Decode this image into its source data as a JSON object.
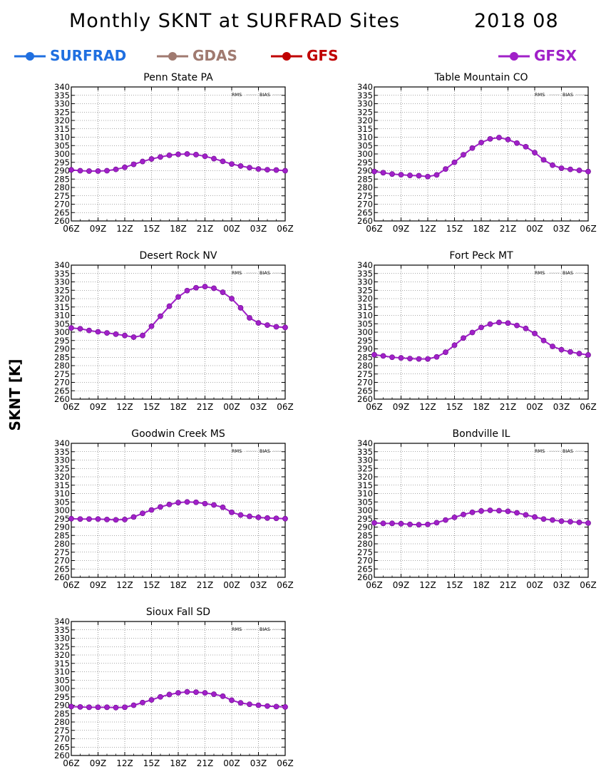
{
  "header": {
    "title": "Monthly SKNT at SURFRAD Sites",
    "date": "2018 08"
  },
  "legend": [
    {
      "name": "SURFRAD",
      "color": "#1f6fe0"
    },
    {
      "name": "GDAS",
      "color": "#a07a70"
    },
    {
      "name": "GFS",
      "color": "#c00000"
    },
    {
      "name": "GFSX",
      "color": "#a020c8"
    }
  ],
  "y_axis_label": "SKNT [K]",
  "panel_legend": [
    "RMS",
    "BIAS"
  ],
  "chart_data": [
    {
      "type": "line",
      "title": "Penn State PA",
      "x": [
        "06Z",
        "07Z",
        "08Z",
        "09Z",
        "10Z",
        "11Z",
        "12Z",
        "13Z",
        "14Z",
        "15Z",
        "16Z",
        "17Z",
        "18Z",
        "19Z",
        "20Z",
        "21Z",
        "22Z",
        "23Z",
        "00Z",
        "01Z",
        "02Z",
        "03Z",
        "04Z",
        "05Z",
        "06Z"
      ],
      "xticks": [
        "06Z",
        "09Z",
        "12Z",
        "15Z",
        "18Z",
        "21Z",
        "00Z",
        "03Z",
        "06Z"
      ],
      "ylim": [
        260,
        340
      ],
      "yticks": [
        260,
        265,
        270,
        275,
        280,
        285,
        290,
        295,
        300,
        305,
        310,
        315,
        320,
        325,
        330,
        335,
        340
      ],
      "grid": true,
      "series": [
        {
          "name": "GFSX",
          "color": "#a020c8",
          "values": [
            290.5,
            290,
            289.8,
            289.8,
            290,
            290.8,
            292,
            293.8,
            295.5,
            297,
            298.2,
            299.2,
            299.8,
            300,
            299.6,
            298.6,
            297.2,
            295.6,
            294,
            292.8,
            291.8,
            291,
            290.6,
            290.4,
            290
          ]
        }
      ]
    },
    {
      "type": "line",
      "title": "Table Mountain CO",
      "x": [
        "06Z",
        "07Z",
        "08Z",
        "09Z",
        "10Z",
        "11Z",
        "12Z",
        "13Z",
        "14Z",
        "15Z",
        "16Z",
        "17Z",
        "18Z",
        "19Z",
        "20Z",
        "21Z",
        "22Z",
        "23Z",
        "00Z",
        "01Z",
        "02Z",
        "03Z",
        "04Z",
        "05Z",
        "06Z"
      ],
      "xticks": [
        "06Z",
        "09Z",
        "12Z",
        "15Z",
        "18Z",
        "21Z",
        "00Z",
        "03Z",
        "06Z"
      ],
      "ylim": [
        260,
        340
      ],
      "yticks": [
        260,
        265,
        270,
        275,
        280,
        285,
        290,
        295,
        300,
        305,
        310,
        315,
        320,
        325,
        330,
        335,
        340
      ],
      "grid": true,
      "series": [
        {
          "name": "GFSX",
          "color": "#a020c8",
          "values": [
            289.5,
            288.8,
            288,
            287.6,
            287.2,
            287,
            286.5,
            287.5,
            291,
            295,
            299.5,
            303.5,
            306.8,
            309,
            309.8,
            308.6,
            306.5,
            304.3,
            300.8,
            296.5,
            293.3,
            291.5,
            290.8,
            290.2,
            289.5
          ]
        }
      ]
    },
    {
      "type": "line",
      "title": "Desert Rock NV",
      "x": [
        "06Z",
        "07Z",
        "08Z",
        "09Z",
        "10Z",
        "11Z",
        "12Z",
        "13Z",
        "14Z",
        "15Z",
        "16Z",
        "17Z",
        "18Z",
        "19Z",
        "20Z",
        "21Z",
        "22Z",
        "23Z",
        "00Z",
        "01Z",
        "02Z",
        "03Z",
        "04Z",
        "05Z",
        "06Z"
      ],
      "xticks": [
        "06Z",
        "09Z",
        "12Z",
        "15Z",
        "18Z",
        "21Z",
        "00Z",
        "03Z",
        "06Z"
      ],
      "ylim": [
        260,
        340
      ],
      "yticks": [
        260,
        265,
        270,
        275,
        280,
        285,
        290,
        295,
        300,
        305,
        310,
        315,
        320,
        325,
        330,
        335,
        340
      ],
      "grid": true,
      "series": [
        {
          "name": "GFSX",
          "color": "#a020c8",
          "values": [
            302.5,
            302,
            301,
            300.2,
            299.5,
            298.8,
            298,
            297,
            298,
            303.5,
            309.5,
            315.5,
            321,
            324.8,
            326.5,
            327.2,
            326.2,
            323.8,
            320,
            314.5,
            308.5,
            305.5,
            304.2,
            303.2,
            302.8
          ]
        }
      ]
    },
    {
      "type": "line",
      "title": "Fort Peck MT",
      "x": [
        "06Z",
        "07Z",
        "08Z",
        "09Z",
        "10Z",
        "11Z",
        "12Z",
        "13Z",
        "14Z",
        "15Z",
        "16Z",
        "17Z",
        "18Z",
        "19Z",
        "20Z",
        "21Z",
        "22Z",
        "23Z",
        "00Z",
        "01Z",
        "02Z",
        "03Z",
        "04Z",
        "05Z",
        "06Z"
      ],
      "xticks": [
        "06Z",
        "09Z",
        "12Z",
        "15Z",
        "18Z",
        "21Z",
        "00Z",
        "03Z",
        "06Z"
      ],
      "ylim": [
        260,
        340
      ],
      "yticks": [
        260,
        265,
        270,
        275,
        280,
        285,
        290,
        295,
        300,
        305,
        310,
        315,
        320,
        325,
        330,
        335,
        340
      ],
      "grid": true,
      "series": [
        {
          "name": "GFSX",
          "color": "#a020c8",
          "values": [
            286.5,
            285.8,
            285,
            284.6,
            284.2,
            284,
            284,
            285.2,
            288,
            292.2,
            296.5,
            299.8,
            302.8,
            304.8,
            305.8,
            305.4,
            304,
            302.2,
            299.2,
            295,
            291.5,
            289.5,
            288.2,
            287.2,
            286.4
          ]
        }
      ]
    },
    {
      "type": "line",
      "title": "Goodwin Creek MS",
      "x": [
        "06Z",
        "07Z",
        "08Z",
        "09Z",
        "10Z",
        "11Z",
        "12Z",
        "13Z",
        "14Z",
        "15Z",
        "16Z",
        "17Z",
        "18Z",
        "19Z",
        "20Z",
        "21Z",
        "22Z",
        "23Z",
        "00Z",
        "01Z",
        "02Z",
        "03Z",
        "04Z",
        "05Z",
        "06Z"
      ],
      "xticks": [
        "06Z",
        "09Z",
        "12Z",
        "15Z",
        "18Z",
        "21Z",
        "00Z",
        "03Z",
        "06Z"
      ],
      "ylim": [
        260,
        340
      ],
      "yticks": [
        260,
        265,
        270,
        275,
        280,
        285,
        290,
        295,
        300,
        305,
        310,
        315,
        320,
        325,
        330,
        335,
        340
      ],
      "grid": true,
      "series": [
        {
          "name": "GFSX",
          "color": "#a020c8",
          "values": [
            295,
            294.8,
            294.8,
            294.8,
            294.5,
            294.3,
            294.5,
            296,
            298.2,
            300.2,
            302,
            303.5,
            304.6,
            305,
            304.8,
            304,
            303.2,
            301.8,
            298.8,
            297.2,
            296.4,
            295.8,
            295.4,
            295.2,
            295
          ]
        }
      ]
    },
    {
      "type": "line",
      "title": "Bondville IL",
      "x": [
        "06Z",
        "07Z",
        "08Z",
        "09Z",
        "10Z",
        "11Z",
        "12Z",
        "13Z",
        "14Z",
        "15Z",
        "16Z",
        "17Z",
        "18Z",
        "19Z",
        "20Z",
        "21Z",
        "22Z",
        "23Z",
        "00Z",
        "01Z",
        "02Z",
        "03Z",
        "04Z",
        "05Z",
        "06Z"
      ],
      "xticks": [
        "06Z",
        "09Z",
        "12Z",
        "15Z",
        "18Z",
        "21Z",
        "00Z",
        "03Z",
        "06Z"
      ],
      "ylim": [
        260,
        340
      ],
      "yticks": [
        260,
        265,
        270,
        275,
        280,
        285,
        290,
        295,
        300,
        305,
        310,
        315,
        320,
        325,
        330,
        335,
        340
      ],
      "grid": true,
      "series": [
        {
          "name": "GFSX",
          "color": "#a020c8",
          "values": [
            292.5,
            292.2,
            292.2,
            292,
            291.6,
            291.4,
            291.6,
            292.6,
            294.2,
            295.8,
            297.5,
            298.8,
            299.6,
            300,
            299.8,
            299.4,
            298.5,
            297.3,
            296,
            294.8,
            294.2,
            293.5,
            293.2,
            292.8,
            292.4
          ]
        }
      ]
    },
    {
      "type": "line",
      "title": "Sioux Fall SD",
      "x": [
        "06Z",
        "07Z",
        "08Z",
        "09Z",
        "10Z",
        "11Z",
        "12Z",
        "13Z",
        "14Z",
        "15Z",
        "16Z",
        "17Z",
        "18Z",
        "19Z",
        "20Z",
        "21Z",
        "22Z",
        "23Z",
        "00Z",
        "01Z",
        "02Z",
        "03Z",
        "04Z",
        "05Z",
        "06Z"
      ],
      "xticks": [
        "06Z",
        "09Z",
        "12Z",
        "15Z",
        "18Z",
        "21Z",
        "00Z",
        "03Z",
        "06Z"
      ],
      "ylim": [
        260,
        340
      ],
      "yticks": [
        260,
        265,
        270,
        275,
        280,
        285,
        290,
        295,
        300,
        305,
        310,
        315,
        320,
        325,
        330,
        335,
        340
      ],
      "grid": true,
      "series": [
        {
          "name": "GFSX",
          "color": "#a020c8",
          "values": [
            289.2,
            289,
            288.8,
            288.8,
            288.8,
            288.6,
            288.8,
            290,
            291.6,
            293.2,
            295,
            296.4,
            297.4,
            298,
            297.8,
            297.4,
            296.6,
            295.4,
            293,
            291.4,
            290.6,
            290,
            289.5,
            289.2,
            289
          ]
        }
      ]
    }
  ]
}
